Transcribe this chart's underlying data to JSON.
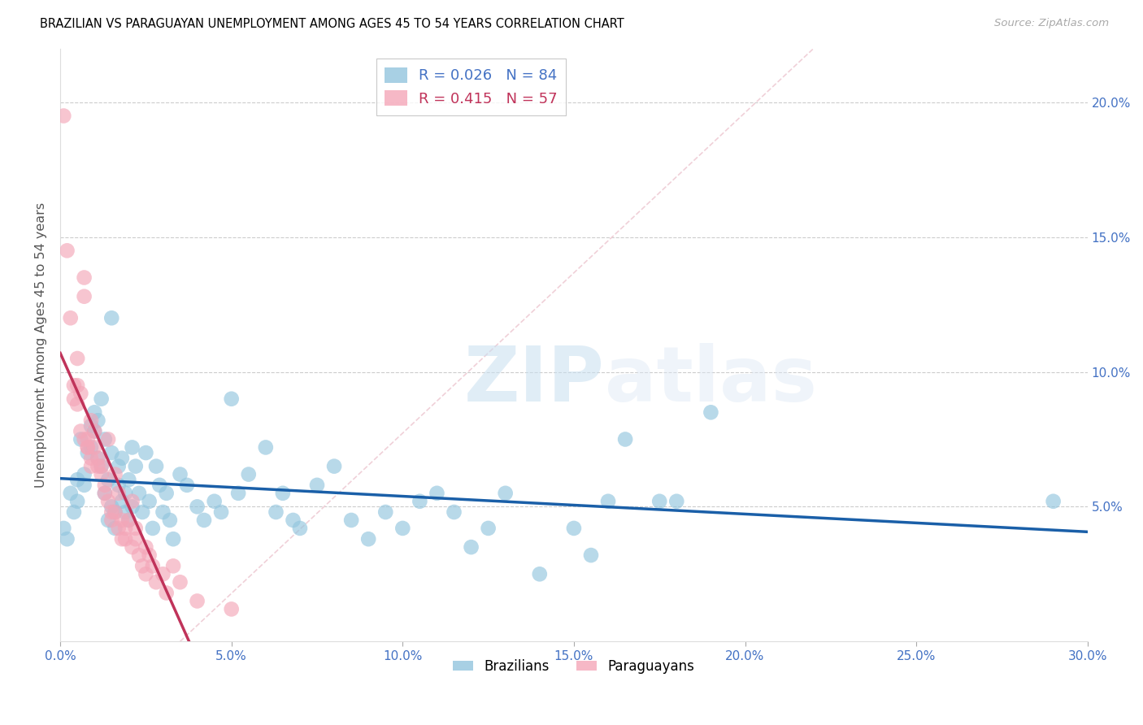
{
  "title": "BRAZILIAN VS PARAGUAYAN UNEMPLOYMENT AMONG AGES 45 TO 54 YEARS CORRELATION CHART",
  "source": "Source: ZipAtlas.com",
  "ylabel": "Unemployment Among Ages 45 to 54 years",
  "xlim": [
    0.0,
    0.3
  ],
  "ylim": [
    0.0,
    0.22
  ],
  "xticks": [
    0.0,
    0.05,
    0.1,
    0.15,
    0.2,
    0.25,
    0.3
  ],
  "yticks": [
    0.05,
    0.1,
    0.15,
    0.2
  ],
  "xticklabels": [
    "0.0%",
    "5.0%",
    "10.0%",
    "15.0%",
    "20.0%",
    "25.0%",
    "30.0%"
  ],
  "yticklabels_right": [
    "5.0%",
    "10.0%",
    "15.0%",
    "20.0%"
  ],
  "brazil_color": "#92c5de",
  "paraguay_color": "#f4a6b8",
  "brazil_R": 0.026,
  "brazil_N": 84,
  "paraguay_R": 0.415,
  "paraguay_N": 57,
  "trend_blue": "#1a5fa8",
  "trend_pink": "#c0335a",
  "diagonal_color": "#f0d0d8",
  "watermark_zip": "ZIP",
  "watermark_atlas": "atlas",
  "brazil_scatter": [
    [
      0.001,
      0.042
    ],
    [
      0.002,
      0.038
    ],
    [
      0.003,
      0.055
    ],
    [
      0.004,
      0.048
    ],
    [
      0.005,
      0.06
    ],
    [
      0.005,
      0.052
    ],
    [
      0.006,
      0.075
    ],
    [
      0.007,
      0.062
    ],
    [
      0.007,
      0.058
    ],
    [
      0.008,
      0.07
    ],
    [
      0.009,
      0.08
    ],
    [
      0.009,
      0.072
    ],
    [
      0.01,
      0.085
    ],
    [
      0.01,
      0.078
    ],
    [
      0.011,
      0.068
    ],
    [
      0.011,
      0.082
    ],
    [
      0.012,
      0.09
    ],
    [
      0.012,
      0.065
    ],
    [
      0.013,
      0.055
    ],
    [
      0.013,
      0.075
    ],
    [
      0.014,
      0.045
    ],
    [
      0.014,
      0.06
    ],
    [
      0.015,
      0.05
    ],
    [
      0.015,
      0.07
    ],
    [
      0.015,
      0.12
    ],
    [
      0.016,
      0.048
    ],
    [
      0.016,
      0.042
    ],
    [
      0.017,
      0.058
    ],
    [
      0.017,
      0.065
    ],
    [
      0.018,
      0.052
    ],
    [
      0.018,
      0.068
    ],
    [
      0.019,
      0.048
    ],
    [
      0.019,
      0.055
    ],
    [
      0.02,
      0.045
    ],
    [
      0.02,
      0.06
    ],
    [
      0.021,
      0.072
    ],
    [
      0.021,
      0.05
    ],
    [
      0.022,
      0.065
    ],
    [
      0.023,
      0.055
    ],
    [
      0.024,
      0.048
    ],
    [
      0.025,
      0.07
    ],
    [
      0.026,
      0.052
    ],
    [
      0.027,
      0.042
    ],
    [
      0.028,
      0.065
    ],
    [
      0.029,
      0.058
    ],
    [
      0.03,
      0.048
    ],
    [
      0.031,
      0.055
    ],
    [
      0.032,
      0.045
    ],
    [
      0.033,
      0.038
    ],
    [
      0.035,
      0.062
    ],
    [
      0.037,
      0.058
    ],
    [
      0.04,
      0.05
    ],
    [
      0.042,
      0.045
    ],
    [
      0.045,
      0.052
    ],
    [
      0.047,
      0.048
    ],
    [
      0.05,
      0.09
    ],
    [
      0.052,
      0.055
    ],
    [
      0.055,
      0.062
    ],
    [
      0.06,
      0.072
    ],
    [
      0.063,
      0.048
    ],
    [
      0.065,
      0.055
    ],
    [
      0.068,
      0.045
    ],
    [
      0.07,
      0.042
    ],
    [
      0.075,
      0.058
    ],
    [
      0.08,
      0.065
    ],
    [
      0.085,
      0.045
    ],
    [
      0.09,
      0.038
    ],
    [
      0.095,
      0.048
    ],
    [
      0.1,
      0.042
    ],
    [
      0.105,
      0.052
    ],
    [
      0.11,
      0.055
    ],
    [
      0.115,
      0.048
    ],
    [
      0.12,
      0.035
    ],
    [
      0.125,
      0.042
    ],
    [
      0.13,
      0.055
    ],
    [
      0.14,
      0.025
    ],
    [
      0.15,
      0.042
    ],
    [
      0.155,
      0.032
    ],
    [
      0.16,
      0.052
    ],
    [
      0.165,
      0.075
    ],
    [
      0.175,
      0.052
    ],
    [
      0.18,
      0.052
    ],
    [
      0.19,
      0.085
    ],
    [
      0.29,
      0.052
    ]
  ],
  "paraguay_scatter": [
    [
      0.001,
      0.195
    ],
    [
      0.002,
      0.145
    ],
    [
      0.003,
      0.12
    ],
    [
      0.004,
      0.095
    ],
    [
      0.004,
      0.09
    ],
    [
      0.005,
      0.105
    ],
    [
      0.005,
      0.095
    ],
    [
      0.005,
      0.088
    ],
    [
      0.006,
      0.092
    ],
    [
      0.006,
      0.078
    ],
    [
      0.007,
      0.075
    ],
    [
      0.007,
      0.135
    ],
    [
      0.007,
      0.128
    ],
    [
      0.008,
      0.072
    ],
    [
      0.008,
      0.075
    ],
    [
      0.008,
      0.072
    ],
    [
      0.009,
      0.068
    ],
    [
      0.009,
      0.065
    ],
    [
      0.009,
      0.082
    ],
    [
      0.01,
      0.078
    ],
    [
      0.01,
      0.072
    ],
    [
      0.011,
      0.068
    ],
    [
      0.011,
      0.065
    ],
    [
      0.012,
      0.062
    ],
    [
      0.012,
      0.065
    ],
    [
      0.013,
      0.058
    ],
    [
      0.013,
      0.055
    ],
    [
      0.014,
      0.052
    ],
    [
      0.014,
      0.075
    ],
    [
      0.015,
      0.048
    ],
    [
      0.015,
      0.045
    ],
    [
      0.016,
      0.062
    ],
    [
      0.016,
      0.048
    ],
    [
      0.017,
      0.055
    ],
    [
      0.017,
      0.042
    ],
    [
      0.018,
      0.038
    ],
    [
      0.018,
      0.045
    ],
    [
      0.019,
      0.042
    ],
    [
      0.019,
      0.038
    ],
    [
      0.02,
      0.045
    ],
    [
      0.021,
      0.052
    ],
    [
      0.021,
      0.035
    ],
    [
      0.022,
      0.042
    ],
    [
      0.022,
      0.038
    ],
    [
      0.023,
      0.032
    ],
    [
      0.024,
      0.028
    ],
    [
      0.025,
      0.035
    ],
    [
      0.025,
      0.025
    ],
    [
      0.026,
      0.032
    ],
    [
      0.027,
      0.028
    ],
    [
      0.028,
      0.022
    ],
    [
      0.03,
      0.025
    ],
    [
      0.031,
      0.018
    ],
    [
      0.033,
      0.028
    ],
    [
      0.035,
      0.022
    ],
    [
      0.04,
      0.015
    ],
    [
      0.05,
      0.012
    ]
  ]
}
